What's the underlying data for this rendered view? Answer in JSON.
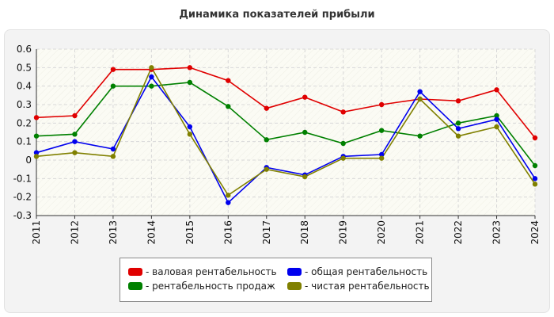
{
  "title": "Динамика показателей прибыли",
  "chart_data": {
    "type": "line",
    "title": "Динамика показателей прибыли",
    "xlabel": "",
    "ylabel": "",
    "categories": [
      "2011",
      "2012",
      "2013",
      "2014",
      "2015",
      "2016",
      "2017",
      "2018",
      "2019",
      "2020",
      "2021",
      "2022",
      "2023",
      "2024"
    ],
    "ylim": [
      -0.3,
      0.6
    ],
    "yticks": [
      "0.6",
      "0.5",
      "0.4",
      "0.3",
      "0.2",
      "0.1",
      "0",
      "-0.1",
      "-0.2",
      "-0.3"
    ],
    "grid": true,
    "legend_position": "bottom",
    "series": [
      {
        "name": "- валовая рентабельность",
        "color": "#e00000",
        "values": [
          0.23,
          0.24,
          0.49,
          0.49,
          0.5,
          0.43,
          0.28,
          0.34,
          0.26,
          0.3,
          0.33,
          0.32,
          0.38,
          0.12
        ]
      },
      {
        "name": "- рентабельность продаж",
        "color": "#008000",
        "values": [
          0.13,
          0.14,
          0.4,
          0.4,
          0.42,
          0.29,
          0.11,
          0.15,
          0.09,
          0.16,
          0.13,
          0.2,
          0.24,
          -0.03
        ]
      },
      {
        "name": "- общая рентабельность",
        "color": "#0000ee",
        "values": [
          0.04,
          0.1,
          0.06,
          0.45,
          0.18,
          -0.23,
          -0.04,
          -0.08,
          0.02,
          0.03,
          0.37,
          0.17,
          0.22,
          -0.1
        ]
      },
      {
        "name": "- чистая рентабельность",
        "color": "#808000",
        "values": [
          0.02,
          0.04,
          0.02,
          0.5,
          0.14,
          -0.19,
          -0.05,
          -0.09,
          0.01,
          0.01,
          0.33,
          0.13,
          0.18,
          -0.13
        ]
      }
    ]
  }
}
